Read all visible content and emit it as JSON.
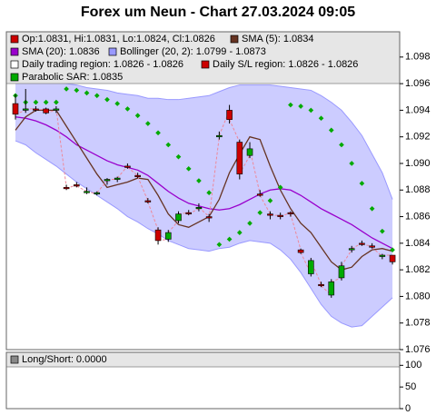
{
  "chart_data": [
    {
      "type": "candlestick",
      "title": "Forex um Neun - Chart 27.03.2024 09:05",
      "ylim": [
        1.076,
        1.0999
      ],
      "yticks": [
        1.076,
        1.078,
        {
          "value": 1.08,
          "label": "1.080"
        },
        1.082,
        1.084,
        1.086,
        1.088,
        {
          "value": 1.09,
          "label": "1.090"
        },
        1.092,
        1.094,
        1.096,
        1.098
      ],
      "legend": [
        {
          "label": "Op:1.0831, Hi:1.0831, Lo:1.0824, Cl:1.0826",
          "color": "#cc0000"
        },
        {
          "label": "SMA (5): 1.0834",
          "color": "#663322"
        },
        {
          "label": "SMA (20): 1.0836",
          "color": "#9900cc"
        },
        {
          "label": "Bollinger (20, 2): 1.0799 - 1.0873",
          "color": "#9999ff"
        },
        {
          "label": "Daily trading region: 1.0826 - 1.0826",
          "color": "#ffffff"
        },
        {
          "label": "Daily S/L region: 1.0826 - 1.0826",
          "color": "#cc0000"
        },
        {
          "label": "Parabolic SAR: 1.0835",
          "color": "#00aa00"
        }
      ],
      "up_color": "#00aa00",
      "down_color": "#cc0000",
      "connector_color": "#ee8899",
      "open": [
        1.0945,
        1.094,
        1.0941,
        1.0941,
        1.094,
        1.0882,
        1.0884,
        1.0879,
        1.0877,
        1.0887,
        1.0888,
        1.0898,
        1.0891,
        1.0872,
        1.085,
        1.0843,
        1.0857,
        1.0863,
        1.0866,
        1.086,
        1.092,
        1.094,
        1.0916,
        1.0906,
        1.0877,
        1.0862,
        1.0861,
        1.0863,
        1.0835,
        1.0817,
        1.0809,
        1.0801,
        1.0814,
        1.0835,
        1.084,
        1.0838,
        1.083,
        1.0831
      ],
      "high": [
        1.0952,
        1.0956,
        1.0943,
        1.0942,
        1.0943,
        1.0884,
        1.0886,
        1.0882,
        1.0879,
        1.0889,
        1.089,
        1.09,
        1.0893,
        1.0874,
        1.0852,
        1.085,
        1.0864,
        1.0865,
        1.087,
        1.0862,
        1.0924,
        1.0944,
        1.0918,
        1.0916,
        1.088,
        1.0864,
        1.0863,
        1.0864,
        1.0836,
        1.0829,
        1.0811,
        1.0813,
        1.0826,
        1.0838,
        1.0842,
        1.084,
        1.0832,
        1.0831
      ],
      "low": [
        1.0933,
        1.0938,
        1.0939,
        1.0937,
        1.0938,
        1.088,
        1.0882,
        1.0877,
        1.0876,
        1.0884,
        1.0886,
        1.0896,
        1.0889,
        1.087,
        1.0839,
        1.0841,
        1.0855,
        1.0861,
        1.0864,
        1.0856,
        1.0918,
        1.093,
        1.0888,
        1.0904,
        1.0875,
        1.0858,
        1.0858,
        1.086,
        1.0832,
        1.0815,
        1.0807,
        1.0799,
        1.0812,
        1.0833,
        1.0838,
        1.0836,
        1.0828,
        1.0824
      ],
      "close": [
        1.0937,
        1.0941,
        1.094,
        1.0938,
        1.0941,
        1.0881,
        1.0883,
        1.0879,
        1.0878,
        1.0888,
        1.0889,
        1.0897,
        1.089,
        1.0871,
        1.0842,
        1.0848,
        1.0862,
        1.0862,
        1.0867,
        1.0859,
        1.0921,
        1.0933,
        1.0892,
        1.0911,
        1.0876,
        1.0861,
        1.086,
        1.0862,
        1.0833,
        1.0827,
        1.0808,
        1.0811,
        1.0823,
        1.0836,
        1.0839,
        1.0837,
        1.0831,
        1.0826
      ],
      "band": {
        "fill": "#ccccff",
        "color": "#9999ff",
        "upper": [
          1.0964,
          1.0964,
          1.0963,
          1.0962,
          1.0961,
          1.096,
          1.0959,
          1.0957,
          1.0956,
          1.0955,
          1.0953,
          1.0952,
          1.0951,
          1.0949,
          1.0949,
          1.0948,
          1.0948,
          1.0949,
          1.095,
          1.0951,
          1.0954,
          1.0957,
          1.0959,
          1.0959,
          1.0959,
          1.0959,
          1.0958,
          1.0957,
          1.0956,
          1.0955,
          1.0951,
          1.0946,
          1.094,
          1.0931,
          1.0921,
          1.0907,
          1.0893,
          1.0873
        ],
        "lower": [
          1.0917,
          1.0914,
          1.0908,
          1.0903,
          1.0898,
          1.0892,
          1.0886,
          1.0881,
          1.0876,
          1.0871,
          1.0866,
          1.086,
          1.0856,
          1.0851,
          1.0847,
          1.0842,
          1.0839,
          1.0836,
          1.0835,
          1.0834,
          1.0836,
          1.0837,
          1.084,
          1.0842,
          1.0841,
          1.084,
          1.0835,
          1.0828,
          1.0818,
          1.0806,
          1.0794,
          1.0785,
          1.078,
          1.0777,
          1.0778,
          1.0785,
          1.0792,
          1.0799
        ]
      },
      "series": [
        {
          "color": "#9900cc",
          "values": [
            1.0935,
            1.0934,
            1.0932,
            1.0929,
            1.0925,
            1.092,
            1.0914,
            1.091,
            1.0906,
            1.0902,
            1.0899,
            1.0897,
            1.0895,
            1.0891,
            1.0885,
            1.0879,
            1.0874,
            1.087,
            1.0868,
            1.0866,
            1.0865,
            1.0866,
            1.0869,
            1.0873,
            1.0877,
            1.088,
            1.0881,
            1.088,
            1.0876,
            1.0871,
            1.0866,
            1.0862,
            1.0858,
            1.0854,
            1.0849,
            1.0844,
            1.084,
            1.0836
          ]
        },
        {
          "color": "#663322",
          "values": [
            1.0925,
            1.0935,
            1.094,
            1.094,
            1.094,
            1.0928,
            1.0916,
            1.0904,
            1.0892,
            1.0882,
            1.0884,
            1.0886,
            1.0889,
            1.0888,
            1.0876,
            1.0862,
            1.0854,
            1.0852,
            1.0856,
            1.086,
            1.0873,
            1.0893,
            1.0907,
            1.092,
            1.0918,
            1.0898,
            1.088,
            1.0866,
            1.0855,
            1.0848,
            1.0837,
            1.0826,
            1.082,
            1.0822,
            1.083,
            1.0835,
            1.0836,
            1.0834
          ]
        }
      ],
      "sar": {
        "color": "#00aa00",
        "values": [
          1.0951,
          1.0946,
          1.0946,
          1.0946,
          1.0946,
          1.0956,
          1.0955,
          1.0953,
          1.0951,
          1.0948,
          1.0945,
          1.0941,
          1.0936,
          1.093,
          1.0923,
          1.0914,
          1.0905,
          1.0896,
          1.0887,
          1.0878,
          1.0839,
          1.0843,
          1.0848,
          1.0855,
          1.0863,
          1.0872,
          1.0882,
          1.0944,
          1.0943,
          1.094,
          1.0934,
          1.0925,
          1.0914,
          1.09,
          1.0885,
          1.0866,
          1.0849,
          1.0835
        ]
      }
    },
    {
      "type": "line",
      "ylim": [
        0,
        130
      ],
      "yticks": [
        0,
        50,
        100
      ],
      "legend": [
        {
          "label": "Long/Short: 0.0000",
          "color": "#888888"
        }
      ]
    }
  ]
}
